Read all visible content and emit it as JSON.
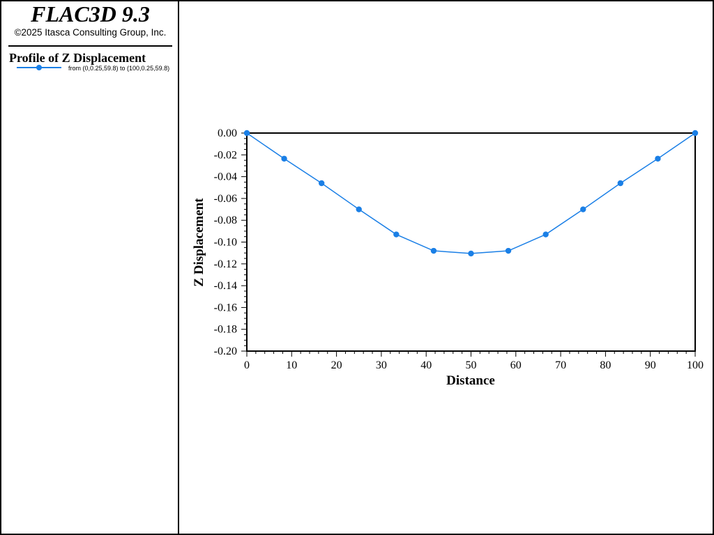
{
  "app": {
    "title": "FLAC3D 9.3",
    "copyright": "©2025 Itasca Consulting Group, Inc."
  },
  "legend": {
    "title": "Profile of Z Displacement",
    "entry_label": "from (0,0.25,59.8) to (100,0.25,59.8)"
  },
  "colors": {
    "series": "#1a7fe6",
    "axis": "#000000"
  },
  "chart_data": {
    "type": "line",
    "title": "Profile of Z Displacement",
    "xlabel": "Distance",
    "ylabel": "Z Displacement",
    "xlim": [
      0,
      100
    ],
    "ylim": [
      -0.2,
      0.0
    ],
    "x_ticks": [
      "0",
      "10",
      "20",
      "30",
      "40",
      "50",
      "60",
      "70",
      "80",
      "90",
      "100"
    ],
    "y_ticks": [
      "0.00",
      "-0.02",
      "-0.04",
      "-0.06",
      "-0.08",
      "-0.10",
      "-0.12",
      "-0.14",
      "-0.16",
      "-0.18",
      "-0.20"
    ],
    "grid": false,
    "series": [
      {
        "name": "from (0,0.25,59.8) to (100,0.25,59.8)",
        "x": [
          0,
          8.33,
          16.67,
          25,
          33.33,
          41.67,
          50,
          58.33,
          66.67,
          75,
          83.33,
          91.67,
          100
        ],
        "y": [
          0.0,
          -0.0235,
          -0.046,
          -0.07,
          -0.093,
          -0.108,
          -0.1105,
          -0.108,
          -0.093,
          -0.07,
          -0.046,
          -0.0235,
          0.0
        ]
      }
    ]
  }
}
